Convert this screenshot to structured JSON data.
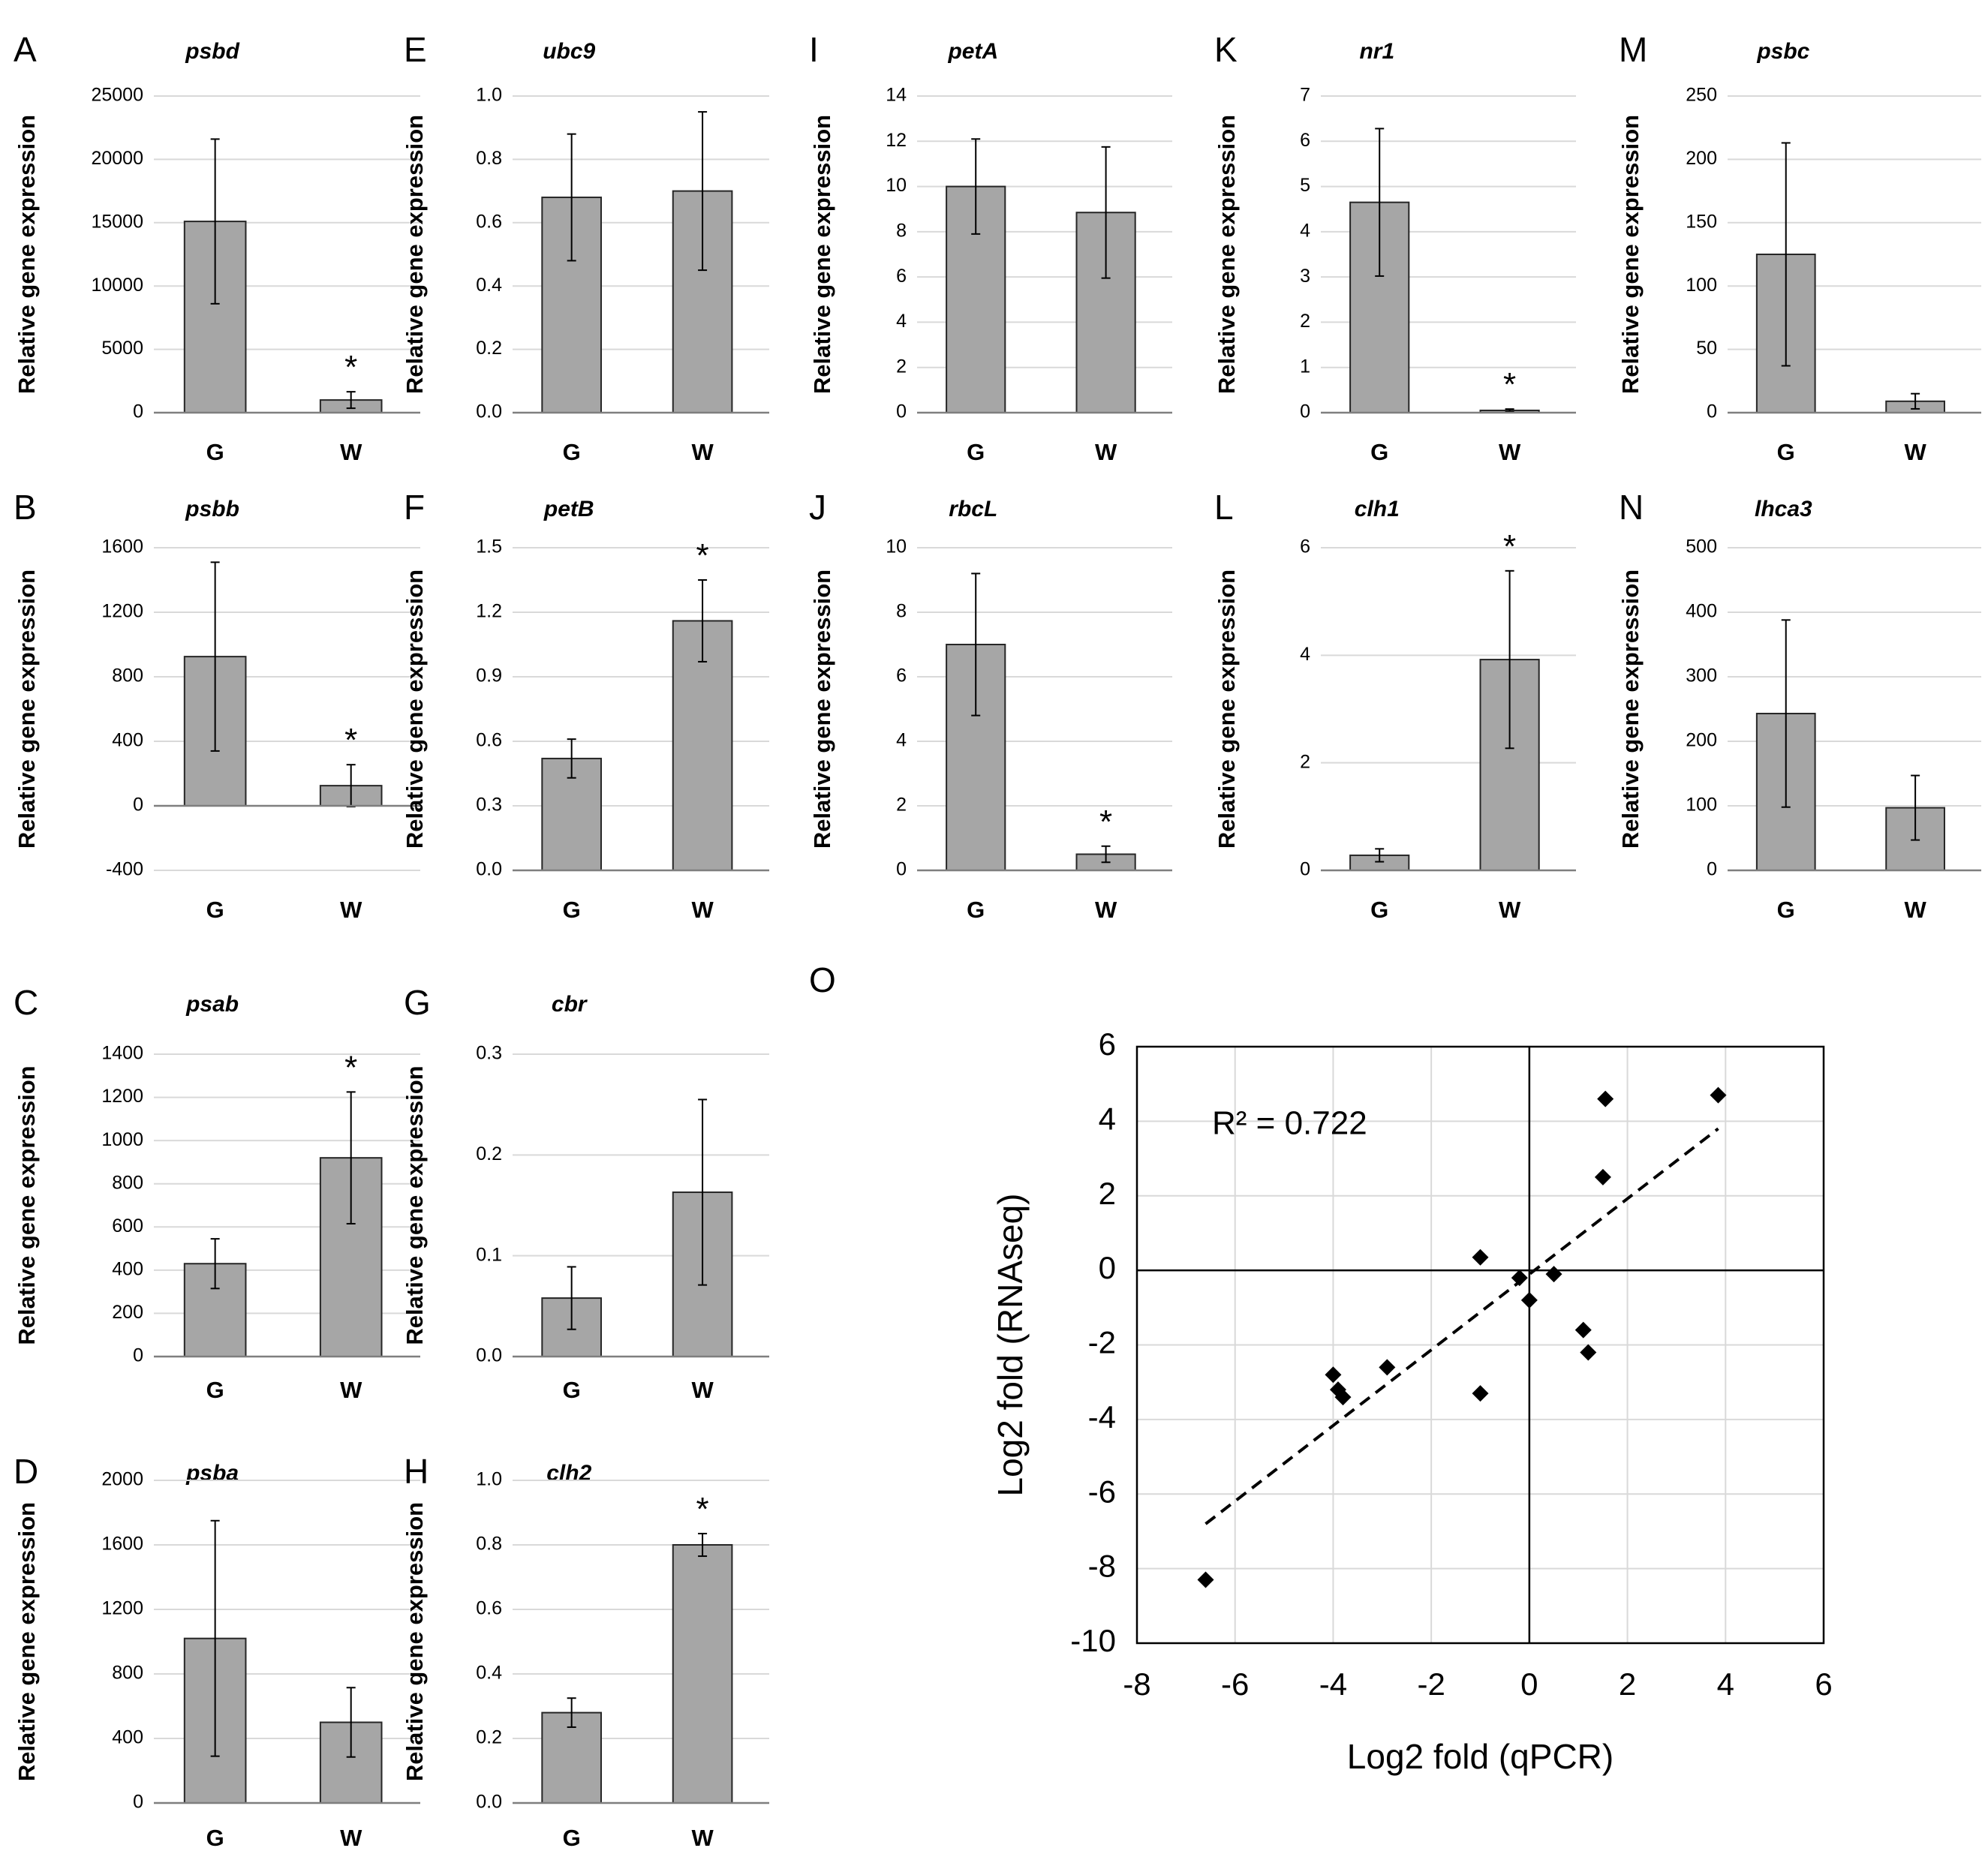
{
  "chart_data": [
    {
      "panel": "A",
      "type": "bar",
      "title": "psbd",
      "ylabel": "Relative gene expression",
      "categories": [
        "G",
        "W"
      ],
      "values": [
        15100,
        1000
      ],
      "errors": [
        6500,
        650
      ],
      "ylim": [
        0,
        25000
      ],
      "yticks": [
        "0",
        "5000",
        "10000",
        "15000",
        "20000",
        "25000"
      ],
      "significant": [
        false,
        true
      ],
      "star": "*",
      "grid": true
    },
    {
      "panel": "E",
      "type": "bar",
      "title": "ubc9",
      "ylabel": "Relative gene expression",
      "categories": [
        "G",
        "W"
      ],
      "values": [
        0.68,
        0.7
      ],
      "errors": [
        0.2,
        0.25
      ],
      "ylim": [
        0,
        1
      ],
      "yticks": [
        "0.0",
        "0.2",
        "0.4",
        "0.6",
        "0.8",
        "1.0"
      ],
      "significant": [
        false,
        false
      ],
      "star": "*",
      "grid": true
    },
    {
      "panel": "I",
      "type": "bar",
      "title": "petA",
      "ylabel": "Relative gene expression",
      "categories": [
        "G",
        "W"
      ],
      "values": [
        10.0,
        8.85
      ],
      "errors": [
        2.1,
        2.9
      ],
      "ylim": [
        0,
        14
      ],
      "yticks": [
        "0",
        "2",
        "4",
        "6",
        "8",
        "10",
        "12",
        "14"
      ],
      "significant": [
        false,
        false
      ],
      "star": "*",
      "grid": true
    },
    {
      "panel": "K",
      "type": "bar",
      "title": "nr1",
      "ylabel": "Relative gene expression",
      "categories": [
        "G",
        "W"
      ],
      "values": [
        4.65,
        0.05
      ],
      "errors": [
        1.63,
        0.03
      ],
      "ylim": [
        0,
        7
      ],
      "yticks": [
        "0",
        "1",
        "2",
        "3",
        "4",
        "5",
        "6",
        "7"
      ],
      "significant": [
        false,
        true
      ],
      "star": "*",
      "grid": true
    },
    {
      "panel": "M",
      "type": "bar",
      "title": "psbc",
      "ylabel": "Relative gene expression",
      "categories": [
        "G",
        "W"
      ],
      "values": [
        125,
        9
      ],
      "errors": [
        88,
        6
      ],
      "ylim": [
        0,
        250
      ],
      "yticks": [
        "0",
        "50",
        "100",
        "150",
        "200",
        "250"
      ],
      "significant": [
        false,
        false
      ],
      "star": "*",
      "grid": true
    },
    {
      "panel": "B",
      "type": "bar",
      "title": "psbb",
      "ylabel": "Relative gene expression",
      "categories": [
        "G",
        "W"
      ],
      "values": [
        925,
        125
      ],
      "errors": [
        585,
        130
      ],
      "ylim": [
        -400,
        1600
      ],
      "yticks": [
        "-400",
        "0",
        "400",
        "800",
        "1200",
        "1600"
      ],
      "significant": [
        false,
        true
      ],
      "star": "*",
      "grid": true
    },
    {
      "panel": "F",
      "type": "bar",
      "title": "petB",
      "ylabel": "Relative gene expression",
      "categories": [
        "G",
        "W"
      ],
      "values": [
        0.52,
        1.16
      ],
      "errors": [
        0.09,
        0.19
      ],
      "ylim": [
        0,
        1.5
      ],
      "yticks": [
        "0.0",
        "0.3",
        "0.6",
        "0.9",
        "1.2",
        "1.5"
      ],
      "significant": [
        false,
        true
      ],
      "star": "*",
      "grid": true
    },
    {
      "panel": "J",
      "type": "bar",
      "title": "rbcL",
      "ylabel": "Relative gene expression",
      "categories": [
        "G",
        "W"
      ],
      "values": [
        7.0,
        0.5
      ],
      "errors": [
        2.2,
        0.25
      ],
      "ylim": [
        0,
        10
      ],
      "yticks": [
        "0",
        "2",
        "4",
        "6",
        "8",
        "10"
      ],
      "significant": [
        false,
        true
      ],
      "star": "*",
      "grid": true
    },
    {
      "panel": "L",
      "type": "bar",
      "title": "clh1",
      "ylabel": "Relative gene expression",
      "categories": [
        "G",
        "W"
      ],
      "values": [
        0.28,
        3.92
      ],
      "errors": [
        0.12,
        1.65
      ],
      "ylim": [
        0,
        6
      ],
      "yticks": [
        "0",
        "2",
        "4",
        "6"
      ],
      "significant": [
        false,
        true
      ],
      "star": "*",
      "grid": true
    },
    {
      "panel": "N",
      "type": "bar",
      "title": "lhca3",
      "ylabel": "Relative gene expression",
      "categories": [
        "G",
        "W"
      ],
      "values": [
        243,
        97
      ],
      "errors": [
        145,
        50
      ],
      "ylim": [
        0,
        500
      ],
      "yticks": [
        "0",
        "100",
        "200",
        "300",
        "400",
        "500"
      ],
      "significant": [
        false,
        false
      ],
      "star": "*",
      "grid": true
    },
    {
      "panel": "C",
      "type": "bar",
      "title": "psab",
      "ylabel": "Relative gene expression",
      "categories": [
        "G",
        "W"
      ],
      "values": [
        430,
        920
      ],
      "errors": [
        115,
        305
      ],
      "ylim": [
        0,
        1400
      ],
      "yticks": [
        "0",
        "200",
        "400",
        "600",
        "800",
        "1000",
        "1200",
        "1400"
      ],
      "significant": [
        false,
        true
      ],
      "star": "*",
      "grid": true
    },
    {
      "panel": "G",
      "type": "bar",
      "title": "cbr",
      "ylabel": "Relative gene expression",
      "categories": [
        "G",
        "W"
      ],
      "values": [
        0.058,
        0.163
      ],
      "errors": [
        0.031,
        0.092
      ],
      "ylim": [
        0,
        0.3
      ],
      "yticks": [
        "0.0",
        "0.1",
        "0.2",
        "0.3"
      ],
      "significant": [
        false,
        false
      ],
      "star": "*",
      "grid": true
    },
    {
      "panel": "D",
      "type": "bar",
      "title": "psba",
      "ylabel": "Relative gene expression",
      "categories": [
        "G",
        "W"
      ],
      "values": [
        1020,
        500
      ],
      "errors": [
        730,
        215
      ],
      "ylim": [
        0,
        2000
      ],
      "yticks": [
        "0",
        "400",
        "800",
        "1200",
        "1600",
        "2000"
      ],
      "significant": [
        false,
        false
      ],
      "star": "*",
      "grid": true
    },
    {
      "panel": "H",
      "type": "bar",
      "title": "clh2",
      "ylabel": "Relative gene expression",
      "categories": [
        "G",
        "W"
      ],
      "values": [
        0.28,
        0.8
      ],
      "errors": [
        0.045,
        0.035
      ],
      "ylim": [
        0,
        1
      ],
      "yticks": [
        "0.0",
        "0.2",
        "0.4",
        "0.6",
        "0.8",
        "1.0"
      ],
      "significant": [
        false,
        true
      ],
      "star": "*",
      "grid": true
    },
    {
      "panel": "O",
      "type": "scatter",
      "xlabel": "Log2 fold (qPCR)",
      "ylabel": "Log2 fold (RNAseq)",
      "annotation": "R² = 0.722",
      "xlim": [
        -8,
        6
      ],
      "ylim": [
        -10,
        6
      ],
      "xticks": [
        "-8",
        "-6",
        "-4",
        "-2",
        "0",
        "2",
        "4",
        "6"
      ],
      "yticks": [
        "-10",
        "-8",
        "-6",
        "-4",
        "-2",
        "0",
        "2",
        "4",
        "6"
      ],
      "grid": true,
      "trendline": {
        "x": [
          -6.6,
          3.85
        ],
        "y": [
          -6.8,
          3.8
        ]
      },
      "points": [
        {
          "x": -6.6,
          "y": -8.3
        },
        {
          "x": -4.0,
          "y": -2.8
        },
        {
          "x": -3.9,
          "y": -3.2
        },
        {
          "x": -3.8,
          "y": -3.4
        },
        {
          "x": -2.9,
          "y": -2.6
        },
        {
          "x": -1.0,
          "y": -3.3
        },
        {
          "x": -1.0,
          "y": 0.35
        },
        {
          "x": -0.2,
          "y": -0.2
        },
        {
          "x": 0.0,
          "y": -0.8
        },
        {
          "x": 0.5,
          "y": -0.1
        },
        {
          "x": 1.1,
          "y": -1.6
        },
        {
          "x": 1.2,
          "y": -2.2
        },
        {
          "x": 1.5,
          "y": 2.5
        },
        {
          "x": 1.55,
          "y": 4.6
        },
        {
          "x": 3.85,
          "y": 4.7
        }
      ]
    }
  ]
}
